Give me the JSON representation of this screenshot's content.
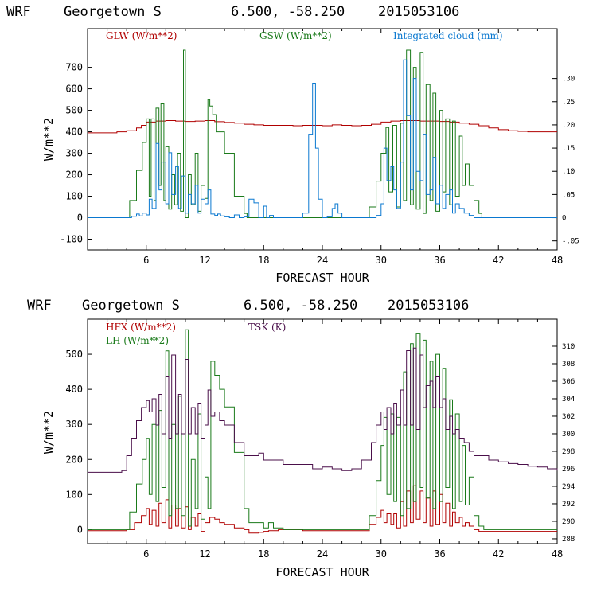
{
  "chart_data": [
    {
      "type": "line",
      "header": {
        "model": "WRF",
        "location": "Georgetown S",
        "coords": "6.500, -58.250",
        "date": "2015053106"
      },
      "xlabel": "FORECAST HOUR",
      "ylabel": "W/m**2",
      "xlim": [
        0,
        48
      ],
      "ylim": [
        -150,
        880
      ],
      "y2lim": [
        -0.0694,
        0.4074
      ],
      "x_ticks": [
        6,
        12,
        18,
        24,
        30,
        36,
        42,
        48
      ],
      "y_ticks": [
        -100,
        0,
        100,
        200,
        300,
        400,
        500,
        600,
        700
      ],
      "y2_ticks": [
        -0.05,
        0,
        0.05,
        0.1,
        0.15,
        0.2,
        0.25,
        0.3
      ],
      "y2_tick_labels": [
        "-.05",
        "0",
        ".05",
        ".10",
        ".15",
        ".20",
        ".25",
        ".30"
      ],
      "legend": [
        {
          "name": "GLW (W/m**2)",
          "color": "#b00000"
        },
        {
          "name": "GSW (W/m**2)",
          "color": "#1a7a1a"
        },
        {
          "name": "Integrated cloud (mm)",
          "color": "#0a78d0"
        }
      ],
      "series": [
        {
          "name": "GLW (W/m**2)",
          "color": "#b00000",
          "axis": "left",
          "x": [
            0,
            3,
            4,
            5,
            5.5,
            6,
            7,
            8,
            9,
            10,
            11,
            12,
            13,
            14,
            15,
            16,
            17,
            18,
            19,
            20,
            21,
            22,
            23,
            24,
            25,
            26,
            27,
            28,
            29,
            30,
            31,
            32,
            33,
            34,
            35,
            36,
            37,
            38,
            39,
            40,
            41,
            42,
            43,
            44,
            45,
            46,
            47,
            48
          ],
          "y": [
            395,
            400,
            405,
            418,
            430,
            445,
            450,
            452,
            450,
            448,
            450,
            452,
            447,
            443,
            440,
            435,
            432,
            430,
            430,
            430,
            428,
            430,
            430,
            428,
            432,
            430,
            428,
            430,
            435,
            445,
            450,
            452,
            452,
            450,
            450,
            448,
            445,
            440,
            435,
            428,
            418,
            410,
            405,
            402,
            400,
            400,
            400,
            400
          ]
        },
        {
          "name": "GSW (W/m**2)",
          "color": "#1a7a1a",
          "axis": "left",
          "x": [
            0,
            3.8,
            4.3,
            5,
            5.6,
            6.0,
            6.3,
            6.5,
            6.8,
            7.0,
            7.3,
            7.5,
            7.8,
            8.0,
            8.3,
            8.6,
            8.9,
            9.2,
            9.5,
            9.8,
            10.0,
            10.3,
            10.6,
            11.0,
            11.3,
            11.6,
            12.0,
            12.3,
            12.5,
            12.8,
            13.2,
            14.0,
            15.0,
            16.0,
            16.3,
            28.0,
            28.8,
            29.5,
            30.0,
            30.5,
            30.8,
            31.2,
            31.6,
            32.0,
            32.3,
            32.6,
            33.0,
            33.3,
            33.6,
            34.0,
            34.3,
            34.6,
            35.0,
            35.3,
            35.6,
            36.0,
            36.3,
            36.6,
            37.0,
            37.3,
            37.6,
            38.0,
            38.3,
            38.6,
            39.0,
            39.5,
            40.0,
            40.3,
            48
          ],
          "y": [
            0,
            0,
            80,
            220,
            350,
            460,
            100,
            460,
            80,
            510,
            150,
            530,
            80,
            330,
            40,
            200,
            60,
            300,
            30,
            780,
            0,
            200,
            60,
            300,
            30,
            150,
            90,
            550,
            520,
            480,
            400,
            300,
            100,
            20,
            0,
            0,
            50,
            170,
            300,
            420,
            120,
            430,
            50,
            440,
            80,
            780,
            60,
            700,
            40,
            770,
            20,
            620,
            80,
            580,
            30,
            500,
            120,
            460,
            60,
            450,
            100,
            380,
            150,
            250,
            150,
            80,
            20,
            0,
            0
          ]
        },
        {
          "name": "Integrated cloud (mm)",
          "color": "#0a78d0",
          "axis": "right",
          "x": [
            0,
            4.0,
            4.5,
            5.0,
            5.3,
            5.6,
            6.0,
            6.3,
            6.6,
            7.0,
            7.3,
            7.6,
            8.0,
            8.3,
            8.6,
            9.0,
            9.3,
            9.6,
            10.0,
            10.3,
            10.6,
            11.0,
            11.3,
            11.6,
            12.0,
            12.3,
            12.6,
            13.0,
            13.3,
            13.6,
            14.0,
            14.5,
            15.0,
            15.5,
            16.0,
            16.5,
            17.0,
            17.5,
            18.0,
            18.3,
            18.6,
            19.0,
            19.3,
            21.5,
            22.0,
            22.6,
            23.0,
            23.3,
            23.6,
            24.0,
            24.5,
            25.0,
            25.3,
            25.6,
            26.0,
            26.5,
            27.5,
            28.5,
            29.5,
            30.0,
            30.3,
            30.6,
            31.0,
            31.3,
            31.6,
            32.0,
            32.3,
            32.6,
            33.0,
            33.3,
            33.6,
            34.0,
            34.3,
            34.6,
            35.0,
            35.3,
            35.6,
            36.0,
            36.3,
            36.6,
            37.0,
            37.3,
            37.6,
            38.0,
            38.5,
            39.0,
            39.5,
            40.0,
            48
          ],
          "y": [
            0,
            0,
            0.003,
            0.008,
            0.004,
            0.01,
            0.006,
            0.04,
            0.02,
            0.16,
            0.06,
            0.12,
            0.03,
            0.14,
            0.05,
            0.11,
            0.02,
            0.09,
            0.01,
            0.05,
            0.03,
            0.07,
            0.01,
            0.04,
            0.03,
            0.06,
            0.008,
            0.005,
            0.008,
            0.004,
            0.002,
            0,
            0.006,
            0,
            0.002,
            0.04,
            0.032,
            0,
            0.025,
            0,
            0.005,
            0,
            0,
            0,
            0.01,
            0.18,
            0.29,
            0.15,
            0.04,
            0,
            0.002,
            0.02,
            0.03,
            0.01,
            0,
            0,
            0,
            0,
            0.005,
            0.03,
            0.15,
            0.08,
            0.11,
            0.06,
            0.02,
            0.12,
            0.34,
            0.22,
            0.06,
            0.3,
            0.1,
            0.08,
            0.18,
            0.05,
            0.06,
            0.13,
            0.03,
            0.07,
            0.02,
            0.05,
            0.06,
            0.01,
            0.03,
            0.02,
            0.01,
            0.005,
            0,
            0,
            0
          ]
        }
      ]
    },
    {
      "type": "line",
      "header": {
        "model": "WRF",
        "location": "Georgetown S",
        "coords": "6.500, -58.250",
        "date": "2015053106"
      },
      "xlabel": "FORECAST HOUR",
      "ylabel": "W/m**2",
      "xlim": [
        0,
        48
      ],
      "ylim": [
        -40,
        600
      ],
      "y2lim": [
        287.45,
        313.09
      ],
      "x_ticks": [
        6,
        12,
        18,
        24,
        30,
        36,
        42,
        48
      ],
      "y_ticks": [
        0,
        100,
        200,
        300,
        400,
        500
      ],
      "y2_ticks": [
        288,
        290,
        292,
        294,
        296,
        298,
        300,
        302,
        304,
        306,
        308,
        310
      ],
      "y2_tick_labels": [
        "288",
        "290",
        "292",
        "294",
        "296",
        "298",
        "300",
        "302",
        "304",
        "306",
        "308",
        "310"
      ],
      "legend": [
        {
          "name": "HFX (W/m**2)",
          "color": "#b00000"
        },
        {
          "name": "LH (W/m**2)",
          "color": "#1a7a1a"
        },
        {
          "name": "TSK (K)",
          "color": "#4a0f4a"
        }
      ],
      "series": [
        {
          "name": "HFX (W/m**2)",
          "color": "#b00000",
          "axis": "left",
          "x": [
            0,
            3.5,
            4.0,
            4.8,
            5.5,
            6.0,
            6.3,
            6.6,
            7.0,
            7.3,
            7.6,
            8.0,
            8.3,
            8.6,
            9.0,
            9.3,
            9.6,
            10.0,
            10.3,
            10.6,
            11.0,
            11.3,
            11.6,
            12.0,
            12.5,
            13.0,
            13.5,
            14.0,
            15.0,
            16.0,
            16.5,
            17.5,
            18.0,
            18.5,
            19.5,
            22.0,
            24.0,
            26.0,
            28.0,
            28.8,
            29.5,
            30.0,
            30.3,
            30.6,
            31.0,
            31.3,
            31.6,
            32.0,
            32.3,
            32.6,
            33.0,
            33.3,
            33.6,
            34.0,
            34.3,
            34.6,
            35.0,
            35.3,
            35.6,
            36.0,
            36.3,
            36.6,
            37.0,
            37.3,
            37.6,
            38.0,
            38.3,
            38.6,
            39.0,
            39.5,
            40.0,
            40.5,
            48
          ],
          "y": [
            -3,
            -3,
            0,
            20,
            40,
            60,
            15,
            55,
            10,
            75,
            20,
            85,
            5,
            70,
            10,
            60,
            5,
            65,
            0,
            35,
            10,
            45,
            -5,
            20,
            35,
            30,
            20,
            15,
            5,
            0,
            -10,
            -8,
            -5,
            -3,
            0,
            -3,
            -3,
            -3,
            -3,
            15,
            35,
            55,
            20,
            45,
            15,
            45,
            5,
            80,
            10,
            110,
            20,
            125,
            30,
            110,
            20,
            90,
            10,
            110,
            15,
            100,
            20,
            75,
            10,
            50,
            20,
            35,
            10,
            20,
            10,
            0,
            -5,
            -5,
            -5
          ]
        },
        {
          "name": "LH (W/m**2)",
          "color": "#1a7a1a",
          "axis": "left",
          "x": [
            0,
            3.8,
            4.3,
            5.0,
            5.6,
            6.0,
            6.3,
            6.6,
            7.0,
            7.3,
            7.6,
            8.0,
            8.3,
            8.6,
            9.0,
            9.3,
            9.6,
            10.0,
            10.3,
            10.6,
            11.0,
            11.3,
            11.6,
            12.0,
            12.3,
            12.6,
            13.0,
            13.5,
            14.0,
            15.0,
            16.0,
            16.5,
            18.0,
            18.5,
            19.0,
            20.0,
            24.0,
            28.0,
            28.8,
            29.5,
            30.0,
            30.3,
            30.6,
            31.0,
            31.3,
            31.6,
            32.0,
            32.3,
            32.6,
            33.0,
            33.3,
            33.6,
            34.0,
            34.3,
            34.6,
            35.0,
            35.3,
            35.6,
            36.0,
            36.3,
            36.6,
            37.0,
            37.3,
            37.6,
            38.0,
            38.3,
            38.6,
            39.0,
            39.5,
            40.0,
            40.5,
            48
          ],
          "y": [
            0,
            0,
            50,
            130,
            200,
            260,
            100,
            300,
            80,
            340,
            120,
            510,
            40,
            300,
            60,
            380,
            40,
            570,
            10,
            200,
            60,
            330,
            30,
            150,
            60,
            480,
            440,
            400,
            350,
            220,
            60,
            20,
            5,
            20,
            5,
            0,
            0,
            0,
            40,
            140,
            240,
            320,
            100,
            330,
            80,
            320,
            40,
            450,
            60,
            530,
            80,
            560,
            120,
            540,
            90,
            480,
            60,
            500,
            80,
            460,
            120,
            370,
            60,
            330,
            80,
            240,
            70,
            150,
            40,
            10,
            0,
            0
          ]
        },
        {
          "name": "TSK (K)",
          "color": "#4a0f4a",
          "axis": "right",
          "x": [
            0,
            3.5,
            4.0,
            4.5,
            5.0,
            5.5,
            6.0,
            6.3,
            6.6,
            7.0,
            7.3,
            7.6,
            8.0,
            8.3,
            8.6,
            9.0,
            9.3,
            9.6,
            10.0,
            10.3,
            10.6,
            11.0,
            11.3,
            11.6,
            12.0,
            12.3,
            12.6,
            13.0,
            13.5,
            14.0,
            15.0,
            16.0,
            17.0,
            17.5,
            18.0,
            19.0,
            20.0,
            21.0,
            22.0,
            23.0,
            24.0,
            25.0,
            26.0,
            27.0,
            28.0,
            29.0,
            29.5,
            30.0,
            30.3,
            30.6,
            31.0,
            31.3,
            31.6,
            32.0,
            32.3,
            32.6,
            33.0,
            33.3,
            33.6,
            34.0,
            34.3,
            34.6,
            35.0,
            35.3,
            35.6,
            36.0,
            36.3,
            36.6,
            37.0,
            37.3,
            37.6,
            38.0,
            38.5,
            39.0,
            39.5,
            40.0,
            41.0,
            42.0,
            43.0,
            44.0,
            45.0,
            46.0,
            47.0,
            48.0
          ],
          "y": [
            295.6,
            295.8,
            297.5,
            299.5,
            301.5,
            303,
            303.8,
            302.5,
            304,
            301,
            304.5,
            300,
            306.5,
            299.5,
            309,
            300,
            304.5,
            300,
            308.5,
            300,
            303,
            300,
            303.5,
            299.5,
            301,
            305,
            302,
            302.5,
            301.5,
            301,
            299,
            297.5,
            297.5,
            297.8,
            297,
            297,
            296.5,
            296.5,
            296.5,
            296,
            296.2,
            296,
            295.8,
            296,
            297,
            299,
            301,
            302.5,
            300.5,
            303,
            300,
            303.5,
            301,
            305,
            301,
            309.5,
            301,
            309.8,
            300.5,
            309,
            303,
            305.5,
            306,
            303,
            306.5,
            303,
            304,
            300.5,
            302,
            300,
            300.5,
            299.5,
            299,
            298,
            297.5,
            297.5,
            297,
            296.8,
            296.6,
            296.5,
            296.3,
            296.2,
            296,
            295.8
          ]
        }
      ]
    }
  ]
}
